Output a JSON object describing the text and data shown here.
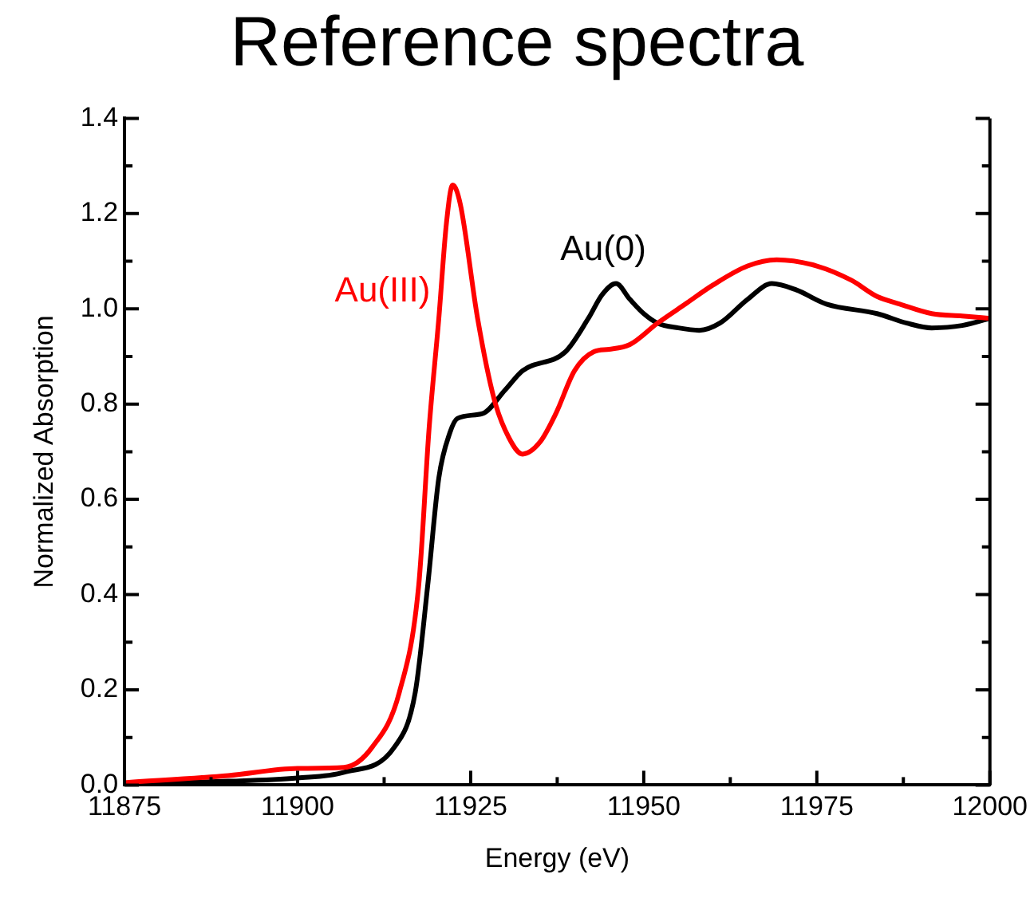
{
  "chart_data": {
    "type": "line",
    "title": "Reference spectra",
    "xlabel": "Energy (eV)",
    "ylabel": "Normalized Absorption",
    "xlim": [
      11875,
      12000
    ],
    "xticks": [
      11875,
      {
        "value": 11887.5,
        "label": null
      },
      11900,
      {
        "value": 11912.5,
        "label": null
      },
      11925,
      {
        "value": 11937.5,
        "label": null
      },
      11950,
      {
        "value": 11962.5,
        "label": null
      },
      11975,
      {
        "value": 11987.5,
        "label": null
      },
      12000
    ],
    "ylim": [
      0,
      1.4
    ],
    "yticks": [
      {
        "value": 0,
        "label": "0.0"
      },
      {
        "value": 0.1,
        "label": null
      },
      0.2,
      {
        "value": 0.3,
        "label": null
      },
      0.4,
      {
        "value": 0.5,
        "label": null
      },
      0.6,
      {
        "value": 0.7,
        "label": null
      },
      0.8,
      {
        "value": 0.9,
        "label": null
      },
      {
        "value": 1.0,
        "label": "1.0"
      },
      {
        "value": 1.1,
        "label": null
      },
      1.2,
      {
        "value": 1.3,
        "label": null
      },
      1.4
    ],
    "grid": false,
    "legend": false,
    "marker": "none",
    "line_style": "solid",
    "series": [
      {
        "name": "Au(III)",
        "color": "#ff0000",
        "x": [
          11875,
          11890,
          11900,
          11906.7,
          11910.8,
          11914.7,
          11917.5,
          11919,
          11920.4,
          11921.5,
          11922.4,
          11923.5,
          11926,
          11928.4,
          11930.5,
          11932.5,
          11935,
          11937.3,
          11940,
          11942.8,
          11945,
          11948,
          11952,
          11956,
          11960,
          11965,
          11969.2,
          11975,
          11980,
          11983.7,
          11987,
          11991.6,
          11996,
          12000
        ],
        "values": [
          0.005,
          0.02,
          0.035,
          0.037,
          0.08,
          0.195,
          0.42,
          0.75,
          0.98,
          1.18,
          1.26,
          1.22,
          0.98,
          0.81,
          0.73,
          0.695,
          0.72,
          0.78,
          0.87,
          0.91,
          0.915,
          0.925,
          0.97,
          1.01,
          1.05,
          1.09,
          1.103,
          1.09,
          1.06,
          1.026,
          1.01,
          0.99,
          0.985,
          0.98
        ]
      },
      {
        "name": "Au(0)",
        "color": "#000000",
        "x": [
          11875,
          11890,
          11900,
          11906.7,
          11914,
          11917,
          11918.8,
          11920.4,
          11922,
          11923.1,
          11926.7,
          11930,
          11932.5,
          11938.7,
          11942,
          11944,
          11946,
          11948,
          11950,
          11952,
          11955,
          11958,
          11961,
          11965,
          11968.5,
          11972,
          11976.4,
          11983.7,
          11988,
          11991.6,
          11996,
          12000
        ],
        "values": [
          0.003,
          0.008,
          0.015,
          0.027,
          0.08,
          0.195,
          0.42,
          0.645,
          0.74,
          0.77,
          0.78,
          0.83,
          0.87,
          0.91,
          0.98,
          1.03,
          1.053,
          1.02,
          0.99,
          0.97,
          0.96,
          0.955,
          0.97,
          1.02,
          1.053,
          1.04,
          1.01,
          0.99,
          0.97,
          0.96,
          0.965,
          0.98
        ]
      }
    ]
  }
}
